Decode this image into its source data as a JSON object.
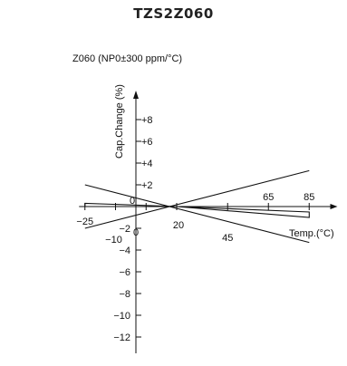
{
  "chart_data": {
    "type": "line",
    "title": "TZS2Z060",
    "subtitle": "Z060 (NP0±300 ppm/°C)",
    "xlabel": "Temp.(°C)",
    "ylabel": "Cap.Change (%)",
    "xlim": [
      -27,
      98
    ],
    "ylim": [
      -13.5,
      10.5
    ],
    "x_ticks_above": [
      {
        "value": 65,
        "label": "65"
      },
      {
        "value": 85,
        "label": "85"
      }
    ],
    "x_ticks_below": [
      {
        "value": -25,
        "label": "−25"
      },
      {
        "value": -10,
        "label": "−10"
      },
      {
        "value": 0,
        "label": "0"
      },
      {
        "value": 20,
        "label": "20"
      },
      {
        "value": 45,
        "label": "45"
      }
    ],
    "x_ticks_unlabeled": [
      5
    ],
    "origin_label": "0",
    "y_ticks": [
      {
        "value": 8,
        "label": "+8"
      },
      {
        "value": 6,
        "label": "+6"
      },
      {
        "value": 4,
        "label": "+4"
      },
      {
        "value": 2,
        "label": "+2"
      },
      {
        "value": -2,
        "label": "−2"
      },
      {
        "value": -4,
        "label": "−4"
      },
      {
        "value": -6,
        "label": "−6"
      },
      {
        "value": -8,
        "label": "−8"
      },
      {
        "value": -10,
        "label": "−10"
      },
      {
        "value": -12,
        "label": "−12"
      }
    ],
    "series": [
      {
        "kind": "line",
        "points": [
          [
            -25,
            2.0
          ],
          [
            85,
            -3.3
          ]
        ]
      },
      {
        "kind": "line",
        "points": [
          [
            -25,
            -2.0
          ],
          [
            85,
            3.3
          ]
        ]
      },
      {
        "kind": "band",
        "points": [
          [
            -25,
            0.3
          ],
          [
            20,
            0.0
          ],
          [
            85,
            -0.5
          ],
          [
            85,
            -1.0
          ],
          [
            20,
            0.0
          ],
          [
            -25,
            0.0
          ]
        ]
      }
    ]
  }
}
